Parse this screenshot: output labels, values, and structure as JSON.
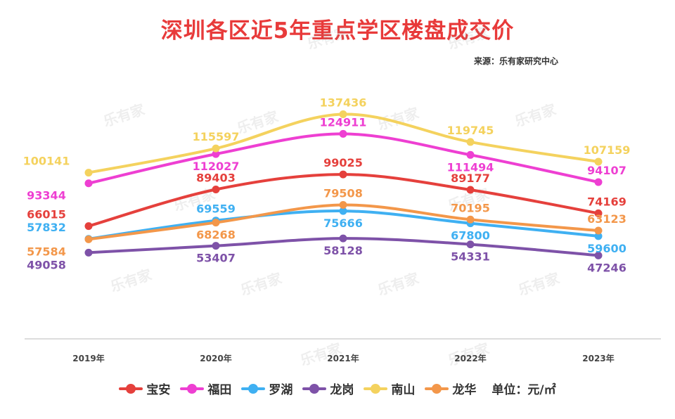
{
  "header": {
    "title": "深圳各区近5年重点学区楼盘成交价",
    "source": "来源：乐有家研究中心"
  },
  "watermark": "乐有家",
  "legend": {
    "unit_label": "单位：元/㎡"
  },
  "chart_data": {
    "type": "line",
    "title": "深圳各区近5年重点学区楼盘成交价",
    "categories": [
      "2019年",
      "2020年",
      "2021年",
      "2022年",
      "2023年"
    ],
    "xlabel": "",
    "ylabel": "",
    "unit": "元/㎡",
    "grid": false,
    "legend_position": "bottom",
    "series": [
      {
        "name": "宝安",
        "color": "#e5403c",
        "values": [
          66015,
          89403,
          99025,
          89177,
          74169
        ]
      },
      {
        "name": "福田",
        "color": "#ee3fd2",
        "values": [
          93344,
          112027,
          124911,
          111494,
          94107
        ]
      },
      {
        "name": "罗湖",
        "color": "#3fb0f2",
        "values": [
          57832,
          69559,
          75666,
          67800,
          59600
        ]
      },
      {
        "name": "龙岗",
        "color": "#7e52a8",
        "values": [
          49058,
          53407,
          58128,
          54331,
          47246
        ]
      },
      {
        "name": "南山",
        "color": "#f4d25e",
        "values": [
          100141,
          115597,
          137436,
          119745,
          107159
        ]
      },
      {
        "name": "龙华",
        "color": "#f3974a",
        "values": [
          57584,
          68268,
          79508,
          70195,
          63123
        ]
      }
    ]
  }
}
